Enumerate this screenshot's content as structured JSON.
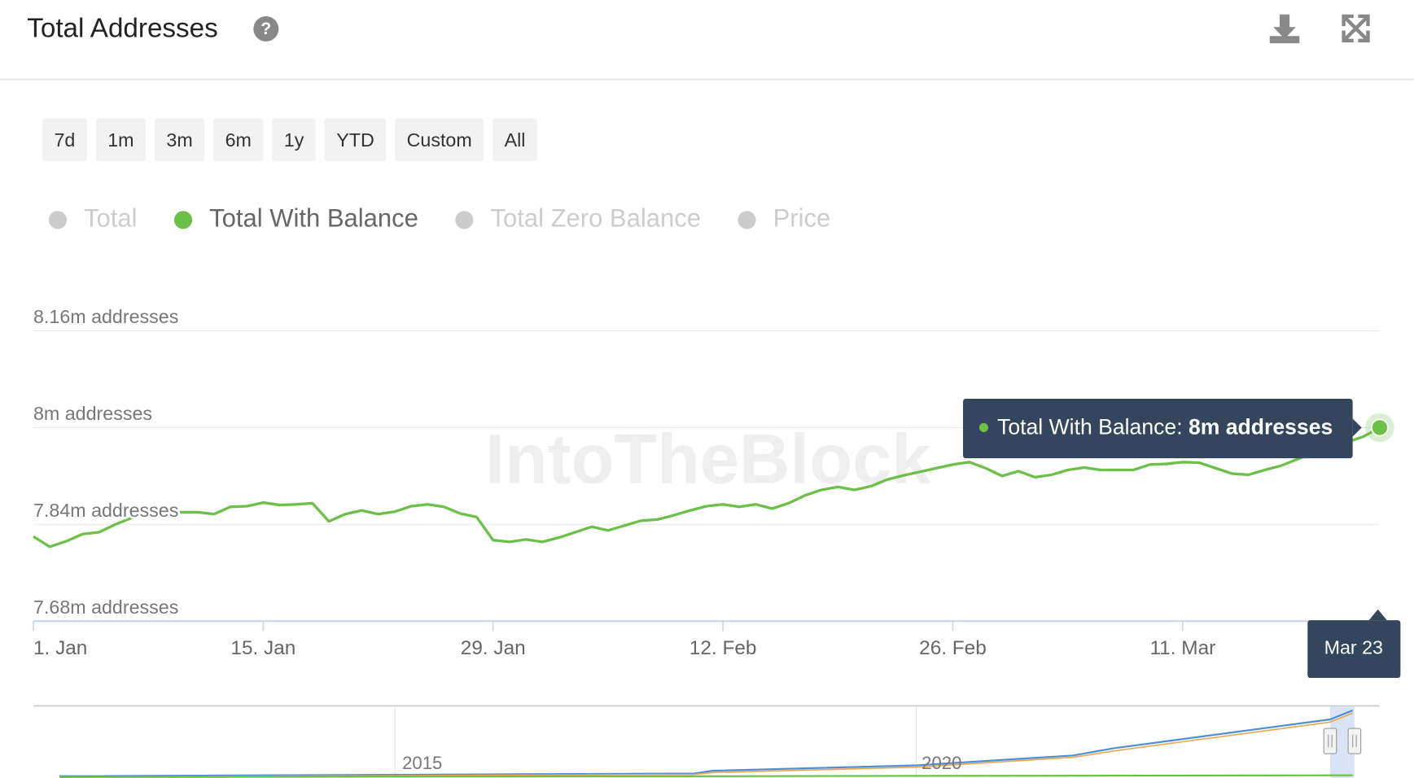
{
  "header": {
    "title": "Total Addresses"
  },
  "range_buttons": [
    "7d",
    "1m",
    "3m",
    "6m",
    "1y",
    "YTD",
    "Custom",
    "All"
  ],
  "watermark": "IntoTheBlock",
  "chart_data": {
    "type": "line",
    "legend": [
      {
        "name": "Total",
        "hidden": true
      },
      {
        "series": 0
      },
      {
        "name": "Total Zero Balance",
        "hidden": true
      },
      {
        "name": "Price",
        "hidden": true
      }
    ],
    "categories": [
      "1. Jan",
      null,
      null,
      null,
      null,
      null,
      null,
      null,
      null,
      null,
      null,
      null,
      null,
      null,
      "15. Jan",
      null,
      null,
      null,
      null,
      null,
      null,
      null,
      null,
      null,
      null,
      null,
      null,
      null,
      "29. Jan",
      null,
      null,
      null,
      null,
      null,
      null,
      null,
      null,
      null,
      null,
      null,
      null,
      null,
      "12. Feb",
      null,
      null,
      null,
      null,
      null,
      null,
      null,
      null,
      null,
      null,
      null,
      null,
      null,
      "26. Feb",
      null,
      null,
      null,
      null,
      null,
      null,
      null,
      null,
      null,
      null,
      null,
      null,
      null,
      "11. Mar",
      null,
      null,
      null,
      null,
      null,
      null,
      null,
      null,
      null,
      null,
      null,
      "Mar 23"
    ],
    "series": [
      {
        "name": "Total With Balance",
        "color": "#6cc04a",
        "values": [
          7.82,
          7.803,
          7.812,
          7.824,
          7.827,
          7.84,
          7.851,
          7.858,
          7.86,
          7.86,
          7.86,
          7.857,
          7.869,
          7.87,
          7.876,
          7.872,
          7.873,
          7.875,
          7.845,
          7.857,
          7.863,
          7.857,
          7.861,
          7.87,
          7.873,
          7.869,
          7.858,
          7.852,
          7.814,
          7.811,
          7.815,
          7.811,
          7.818,
          7.827,
          7.836,
          7.83,
          7.838,
          7.846,
          7.848,
          7.855,
          7.863,
          7.87,
          7.873,
          7.869,
          7.873,
          7.866,
          7.875,
          7.888,
          7.897,
          7.902,
          7.897,
          7.903,
          7.914,
          7.921,
          7.927,
          7.933,
          7.939,
          7.943,
          7.933,
          7.92,
          7.928,
          7.918,
          7.922,
          7.93,
          7.934,
          7.93,
          7.93,
          7.93,
          7.939,
          7.94,
          7.943,
          7.942,
          7.933,
          7.924,
          7.922,
          7.93,
          7.937,
          7.948,
          7.958,
          7.967,
          7.976,
          7.985,
          8.0
        ],
        "value_labels": [
          null,
          null,
          null,
          null,
          null,
          null,
          null,
          null,
          null,
          null,
          null,
          null,
          null,
          null,
          null,
          null,
          null,
          null,
          null,
          null,
          null,
          null,
          null,
          null,
          null,
          null,
          null,
          null,
          null,
          null,
          null,
          null,
          null,
          null,
          null,
          null,
          null,
          null,
          null,
          null,
          null,
          null,
          null,
          null,
          null,
          null,
          null,
          null,
          null,
          null,
          null,
          null,
          null,
          null,
          null,
          null,
          null,
          null,
          null,
          null,
          null,
          null,
          null,
          null,
          null,
          null,
          null,
          null,
          null,
          null,
          null,
          null,
          null,
          null,
          null,
          null,
          null,
          null,
          null,
          null,
          null,
          null,
          "8m addresses"
        ]
      }
    ],
    "tooltip_prefix": "Total With Balance:",
    "ylim": [
      7.68,
      8.16
    ],
    "yticks": [
      {
        "value": 7.68,
        "label": "7.68m addresses"
      },
      {
        "value": 7.84,
        "label": "7.84m addresses"
      },
      {
        "value": 8,
        "label": "8m addresses"
      },
      {
        "value": 8.16,
        "label": "8.16m addresses"
      }
    ],
    "grid": true,
    "navigator_labels": [
      "2015",
      "2020"
    ]
  }
}
